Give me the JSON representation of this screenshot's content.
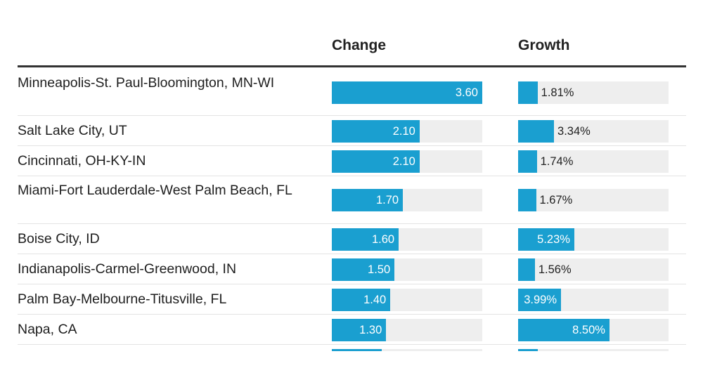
{
  "chart_data": {
    "type": "table",
    "title": "",
    "columns": [
      "Change",
      "Growth"
    ],
    "change_max": 3.6,
    "growth_max": 14.0,
    "rows": [
      {
        "label": "Minneapolis-St. Paul-Bloomington, MN-WI",
        "change": 3.6,
        "change_label": "3.60",
        "growth": 1.81,
        "growth_label": "1.81%"
      },
      {
        "label": "Salt Lake City, UT",
        "change": 2.1,
        "change_label": "2.10",
        "growth": 3.34,
        "growth_label": "3.34%"
      },
      {
        "label": "Cincinnati, OH-KY-IN",
        "change": 2.1,
        "change_label": "2.10",
        "growth": 1.74,
        "growth_label": "1.74%"
      },
      {
        "label": "Miami-Fort Lauderdale-West Palm Beach, FL",
        "change": 1.7,
        "change_label": "1.70",
        "growth": 1.67,
        "growth_label": "1.67%"
      },
      {
        "label": "Boise City, ID",
        "change": 1.6,
        "change_label": "1.60",
        "growth": 5.23,
        "growth_label": "5.23%"
      },
      {
        "label": "Indianapolis-Carmel-Greenwood, IN",
        "change": 1.5,
        "change_label": "1.50",
        "growth": 1.56,
        "growth_label": "1.56%"
      },
      {
        "label": "Palm Bay-Melbourne-Titusville, FL",
        "change": 1.4,
        "change_label": "1.40",
        "growth": 3.99,
        "growth_label": "3.99%"
      },
      {
        "label": "Napa, CA",
        "change": 1.3,
        "change_label": "1.30",
        "growth": 8.5,
        "growth_label": "8.50%"
      }
    ],
    "partial_row": {
      "change": 1.2,
      "growth": 1.8
    }
  },
  "colors": {
    "bar": "#1a9fd0",
    "track": "#eeeeee"
  }
}
